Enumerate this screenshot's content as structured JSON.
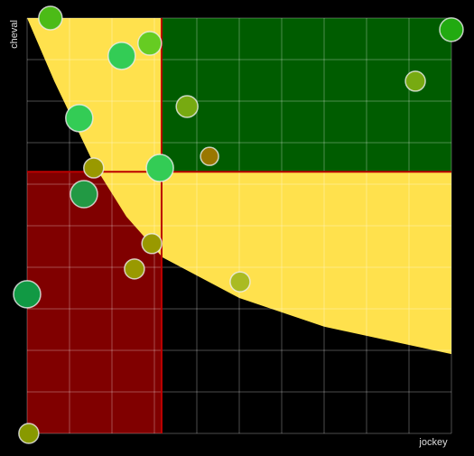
{
  "chart_data": {
    "type": "bubble",
    "xlabel": "jockey",
    "ylabel": "cheval",
    "xlim": [
      0,
      10
    ],
    "ylim": [
      0,
      10
    ],
    "xticks": [
      0,
      1,
      2,
      3,
      4,
      5,
      6,
      7,
      8,
      9,
      10
    ],
    "yticks": [
      0,
      1,
      2,
      3,
      4,
      5,
      6,
      7,
      8,
      9,
      10
    ],
    "grid": true,
    "zones": [
      {
        "color": "#800000",
        "x": [
          0,
          3.17
        ],
        "y": [
          0,
          6.3
        ]
      },
      {
        "color": "#ffe14d",
        "curve_x": [
          0,
          0.64,
          1.6,
          2.34,
          3.19,
          5,
          7,
          10
        ],
        "curve_y": [
          10,
          8.48,
          6.43,
          5.22,
          4.24,
          3.26,
          2.57,
          1.91
        ]
      },
      {
        "color": "#005c00",
        "x": [
          3.17,
          10
        ],
        "y": [
          6.3,
          10
        ]
      }
    ],
    "x": [
      0.55,
      2.23,
      2.89,
      1.23,
      3.77,
      4.3,
      1.57,
      3.13,
      1.34,
      2.94,
      2.53,
      5.02,
      0,
      0.04,
      9.15,
      10
    ],
    "y": [
      10,
      9.09,
      9.39,
      7.59,
      7.87,
      6.67,
      6.39,
      6.39,
      5.76,
      4.57,
      3.96,
      3.65,
      3.35,
      0,
      8.48,
      9.72
    ],
    "sizes": [
      13,
      15,
      13,
      15,
      12,
      10,
      11,
      15,
      15,
      11,
      11,
      11,
      15,
      11,
      11,
      13
    ],
    "colors": [
      "#4cbb17",
      "#33cc55",
      "#66cc22",
      "#33cc55",
      "#77aa11",
      "#997700",
      "#999900",
      "#33cc55",
      "#229944",
      "#999900",
      "#999900",
      "#aabb22",
      "#119944",
      "#889900",
      "#77aa11",
      "#22aa11"
    ]
  }
}
